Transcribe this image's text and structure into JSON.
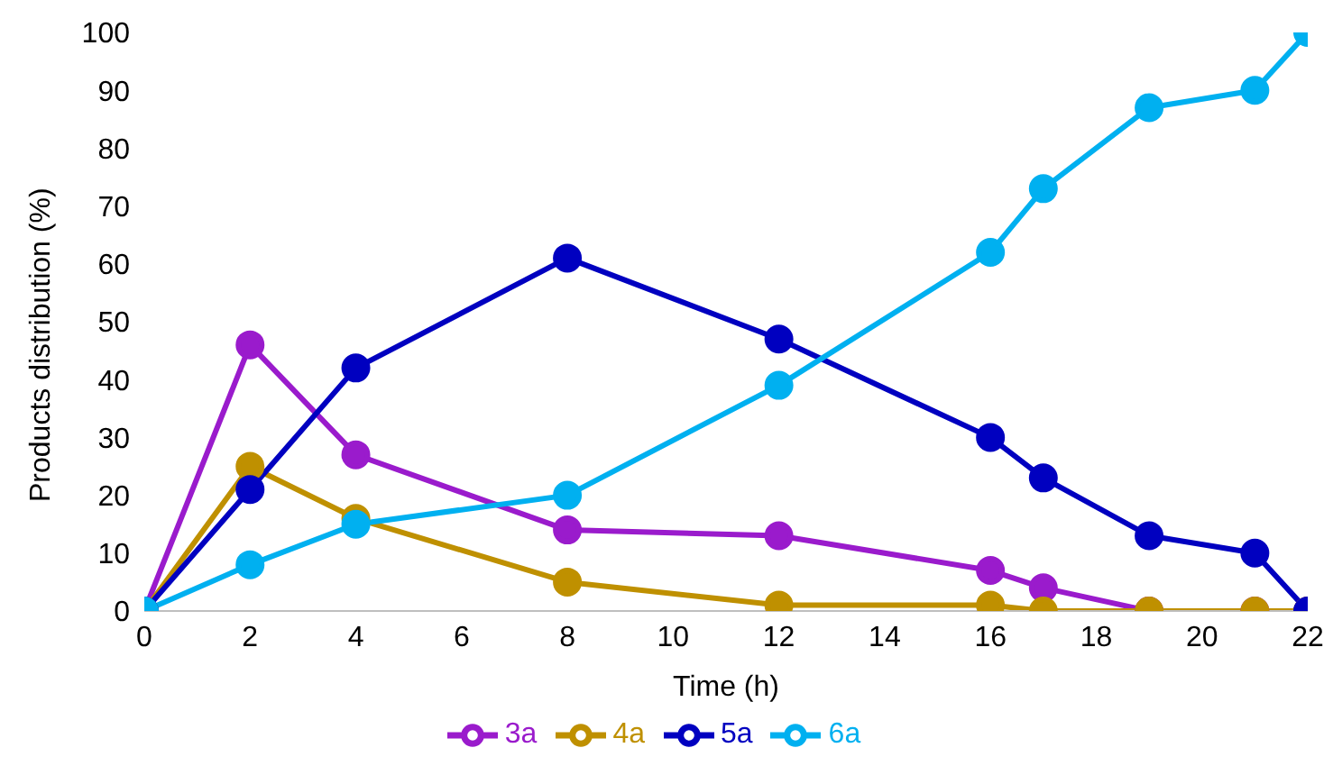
{
  "chart_data": {
    "type": "line",
    "xlabel": "Time (h)",
    "ylabel": "Products distribution (%)",
    "x": [
      0,
      2,
      4,
      8,
      12,
      16,
      17,
      19,
      21,
      22
    ],
    "series": [
      {
        "name": "3a",
        "color": "#9a1bcc",
        "values": [
          0,
          46,
          27,
          14,
          13,
          7,
          4,
          0,
          0,
          0
        ]
      },
      {
        "name": "4a",
        "color": "#bf9000",
        "values": [
          0,
          25,
          16,
          5,
          1,
          1,
          0,
          0,
          0,
          0
        ]
      },
      {
        "name": "5a",
        "color": "#0000c0",
        "values": [
          0,
          21,
          42,
          61,
          47,
          30,
          23,
          13,
          10,
          0
        ]
      },
      {
        "name": "6a",
        "color": "#00b0f0",
        "values": [
          0,
          8,
          15,
          20,
          39,
          62,
          73,
          87,
          90,
          100
        ]
      }
    ],
    "xlim": [
      0,
      22
    ],
    "xticks": [
      0,
      2,
      4,
      6,
      8,
      10,
      12,
      14,
      16,
      18,
      20,
      22
    ],
    "ylim": [
      0,
      100
    ],
    "yticks": [
      0,
      10,
      20,
      30,
      40,
      50,
      60,
      70,
      80,
      90,
      100
    ],
    "grid": false,
    "legend": "bottom",
    "marker": "circle",
    "line_style": "solid"
  }
}
